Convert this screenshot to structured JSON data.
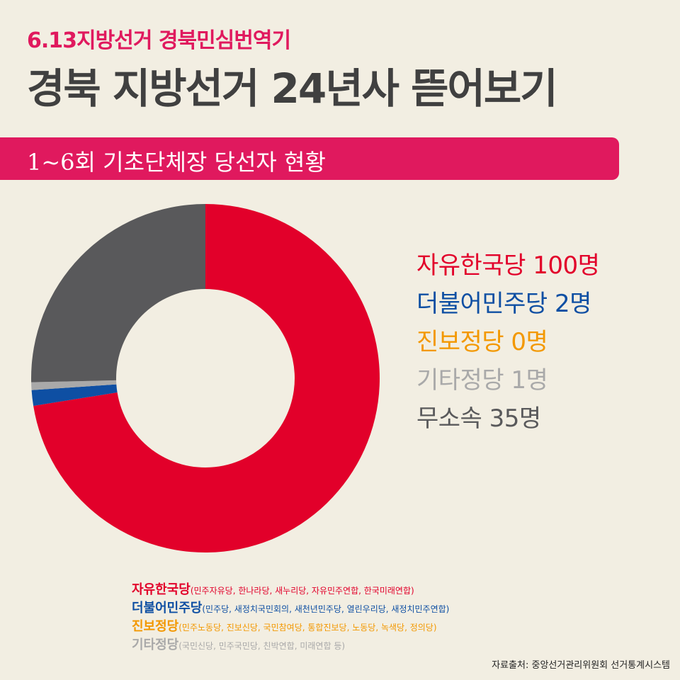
{
  "header": {
    "subtitle": "6.13지방선거 경북민심번역기",
    "title": "경북 지방선거 24년사 뜯어보기",
    "banner": "1~6회 기초단체장 당선자 현황"
  },
  "chart_data": {
    "type": "pie",
    "donut": true,
    "categories": [
      "자유한국당",
      "더불어민주당",
      "진보정당",
      "기타정당",
      "무소속"
    ],
    "values": [
      100,
      2,
      0,
      1,
      35
    ],
    "unit": "명",
    "colors": [
      "#e2002a",
      "#0e4fa3",
      "#f39800",
      "#a9a9a9",
      "#59595b"
    ],
    "legend_position": "right",
    "legend_labels": [
      "자유한국당 100명",
      "더불어민주당 2명",
      "진보정당 0명",
      "기타정당 1명",
      "무소속 35명"
    ]
  },
  "notes": [
    {
      "name": "자유한국당",
      "detail": "(민주자유당, 한나라당, 새누리당, 자유민주연합, 한국미래연합)",
      "color": "#e2002a"
    },
    {
      "name": "더불어민주당",
      "detail": "(민주당, 새정치국민회의, 새천년민주당, 열린우리당, 새정치민주연합)",
      "color": "#0e4fa3"
    },
    {
      "name": "진보정당",
      "detail": "(민주노동당, 진보신당, 국민참여당, 통합진보당, 노동당, 녹색당, 정의당)",
      "color": "#f39800"
    },
    {
      "name": "기타정당",
      "detail": "(국민신당, 민주국민당, 친박연합, 미래연합 등)",
      "color": "#a9a9a9"
    }
  ],
  "source": "자료출처: 중앙선거관리위원회 선거통계시스템"
}
